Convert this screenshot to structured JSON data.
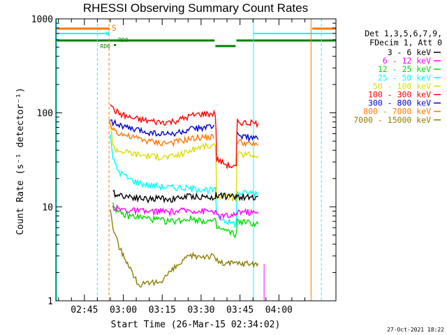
{
  "chart_data": {
    "type": "line",
    "title": "RHESSI Observing Summary Count Rates",
    "xlabel": "Start Time (26-Mar-15 02:34:02)",
    "ylabel": "Count Rate (s⁻¹ detector⁻¹)",
    "yscale": "log",
    "ylim": [
      1,
      1000
    ],
    "xlim_minutes": [
      0,
      108
    ],
    "x_ticks": [
      {
        "t": 11,
        "label": "02:45"
      },
      {
        "t": 26,
        "label": "03:00"
      },
      {
        "t": 41,
        "label": "03:15"
      },
      {
        "t": 56,
        "label": "03:30"
      },
      {
        "t": 71,
        "label": "03:45"
      },
      {
        "t": 86,
        "label": "04:00"
      }
    ],
    "y_ticks": [
      {
        "v": 1,
        "label": "1"
      },
      {
        "v": 10,
        "label": "10"
      },
      {
        "v": 100,
        "label": "100"
      },
      {
        "v": 1000,
        "label": "1000"
      }
    ],
    "legend_header": [
      "Det 1,3,5,6,7,9,",
      "FDecim 1, Att 0"
    ],
    "series": [
      {
        "name": "3 - 6 keV",
        "color": "#000000",
        "points": [
          [
            21,
            null
          ],
          [
            22,
            14
          ],
          [
            24,
            13.5
          ],
          [
            28,
            13
          ],
          [
            32,
            12.5
          ],
          [
            36,
            12
          ],
          [
            40,
            12.5
          ],
          [
            44,
            12
          ],
          [
            48,
            12.5
          ],
          [
            52,
            13
          ],
          [
            56,
            12.8
          ],
          [
            60,
            12.5
          ],
          [
            61.5,
            13
          ],
          [
            62,
            13.5
          ],
          [
            66,
            13
          ],
          [
            68,
            12.8
          ],
          [
            69.5,
            12.8
          ],
          [
            70,
            13
          ],
          [
            74,
            12.5
          ],
          [
            78,
            13
          ]
        ]
      },
      {
        "name": "6 - 12 keV",
        "color": "#ff00ff",
        "points": [
          [
            21,
            null
          ],
          [
            22,
            10
          ],
          [
            24,
            9.5
          ],
          [
            28,
            9.2
          ],
          [
            32,
            9
          ],
          [
            36,
            8.8
          ],
          [
            40,
            9
          ],
          [
            44,
            8.8
          ],
          [
            48,
            9
          ],
          [
            52,
            9.2
          ],
          [
            56,
            9
          ],
          [
            60,
            9
          ],
          [
            61.5,
            9
          ],
          [
            62,
            8
          ],
          [
            66,
            8
          ],
          [
            69.5,
            8
          ],
          [
            70,
            9
          ],
          [
            74,
            8.8
          ],
          [
            78,
            8.5
          ]
        ]
      },
      {
        "name": "12 - 25 keV",
        "color": "#00dd00",
        "points": [
          [
            21,
            null
          ],
          [
            22,
            11
          ],
          [
            24,
            8.5
          ],
          [
            28,
            8
          ],
          [
            32,
            7.8
          ],
          [
            36,
            7.5
          ],
          [
            40,
            7.2
          ],
          [
            44,
            7
          ],
          [
            48,
            7.2
          ],
          [
            52,
            7.5
          ],
          [
            56,
            7.2
          ],
          [
            60,
            7
          ],
          [
            61.5,
            7
          ],
          [
            62,
            6
          ],
          [
            66,
            5.5
          ],
          [
            69.5,
            5
          ],
          [
            70,
            7
          ],
          [
            74,
            6.8
          ],
          [
            78,
            6.5
          ]
        ]
      },
      {
        "name": "25 - 50 keV",
        "color": "#00ffff",
        "points": [
          [
            20.5,
            null
          ],
          [
            21,
            60
          ],
          [
            22,
            32
          ],
          [
            24,
            24
          ],
          [
            28,
            20
          ],
          [
            32,
            18
          ],
          [
            36,
            17
          ],
          [
            40,
            16.5
          ],
          [
            44,
            16
          ],
          [
            48,
            16
          ],
          [
            52,
            15.5
          ],
          [
            56,
            15.5
          ],
          [
            60,
            15
          ],
          [
            61.5,
            15
          ],
          [
            62,
            8
          ],
          [
            66,
            7
          ],
          [
            69.5,
            6.5
          ],
          [
            70,
            14
          ],
          [
            74,
            14
          ],
          [
            78,
            14
          ]
        ]
      },
      {
        "name": "50 - 100 keV",
        "color": "#dddd00",
        "points": [
          [
            20.5,
            null
          ],
          [
            21,
            80
          ],
          [
            22,
            44
          ],
          [
            24,
            40
          ],
          [
            28,
            38
          ],
          [
            32,
            36
          ],
          [
            36,
            35
          ],
          [
            40,
            34
          ],
          [
            44,
            34
          ],
          [
            48,
            36
          ],
          [
            52,
            40
          ],
          [
            56,
            44
          ],
          [
            60,
            44
          ],
          [
            61.5,
            44
          ],
          [
            62,
            13
          ],
          [
            66,
            13
          ],
          [
            69.5,
            12
          ],
          [
            70,
            36
          ],
          [
            74,
            36
          ],
          [
            78,
            35
          ]
        ]
      },
      {
        "name": "100 - 300 keV",
        "color": "#ff0000",
        "points": [
          [
            20.5,
            null
          ],
          [
            21,
            130
          ],
          [
            22,
            110
          ],
          [
            24,
            100
          ],
          [
            28,
            90
          ],
          [
            32,
            85
          ],
          [
            36,
            82
          ],
          [
            40,
            80
          ],
          [
            44,
            80
          ],
          [
            48,
            85
          ],
          [
            52,
            93
          ],
          [
            56,
            98
          ],
          [
            60,
            98
          ],
          [
            61.5,
            98
          ],
          [
            62,
            32
          ],
          [
            66,
            28
          ],
          [
            69.5,
            26
          ],
          [
            70,
            80
          ],
          [
            74,
            78
          ],
          [
            78,
            77
          ]
        ]
      },
      {
        "name": "300 - 800 keV",
        "color": "#0000cc",
        "points": [
          [
            20.5,
            null
          ],
          [
            21,
            90
          ],
          [
            22,
            80
          ],
          [
            24,
            75
          ],
          [
            28,
            68
          ],
          [
            32,
            65
          ],
          [
            36,
            62
          ],
          [
            40,
            60
          ],
          [
            44,
            59
          ],
          [
            48,
            62
          ],
          [
            52,
            66
          ],
          [
            56,
            70
          ],
          [
            60,
            70
          ],
          [
            61.5,
            70
          ],
          [
            62,
            null
          ],
          [
            70,
            60
          ],
          [
            74,
            55
          ],
          [
            78,
            52
          ]
        ]
      },
      {
        "name": "800 - 7000 keV",
        "color": "#ff7700",
        "points": [
          [
            19.5,
            null
          ],
          [
            20.5,
            80
          ],
          [
            22,
            68
          ],
          [
            24,
            62
          ],
          [
            28,
            56
          ],
          [
            32,
            53
          ],
          [
            36,
            50
          ],
          [
            40,
            48
          ],
          [
            44,
            48
          ],
          [
            48,
            50
          ],
          [
            52,
            53
          ],
          [
            56,
            55
          ],
          [
            60,
            55
          ],
          [
            61.5,
            55
          ],
          [
            62,
            null
          ],
          [
            70,
            50
          ],
          [
            74,
            47
          ],
          [
            78,
            45
          ]
        ]
      },
      {
        "name": "7000 - 15000 keV",
        "color": "#8b7d00",
        "points": [
          [
            20,
            null
          ],
          [
            21,
            9
          ],
          [
            22,
            6
          ],
          [
            24,
            4
          ],
          [
            26,
            3
          ],
          [
            28,
            2.5
          ],
          [
            30,
            1.8
          ],
          [
            32,
            1.5
          ],
          [
            36,
            1.5
          ],
          [
            40,
            1.6
          ],
          [
            44,
            2
          ],
          [
            48,
            2.5
          ],
          [
            52,
            3
          ],
          [
            56,
            3
          ],
          [
            60,
            3
          ],
          [
            64,
            2.5
          ],
          [
            68,
            2.5
          ],
          [
            72,
            2.5
          ],
          [
            78,
            2.5
          ]
        ]
      }
    ],
    "state_bars": [
      {
        "label": "S",
        "color": "#ff7700"
      },
      {
        "label": "N",
        "color": "#00ffff"
      },
      {
        "label": "RD0",
        "color": "#008000"
      },
      {
        "label": "RD6",
        "color": "#008000"
      }
    ],
    "footer_date": "27-Oct-2021 18:22"
  }
}
